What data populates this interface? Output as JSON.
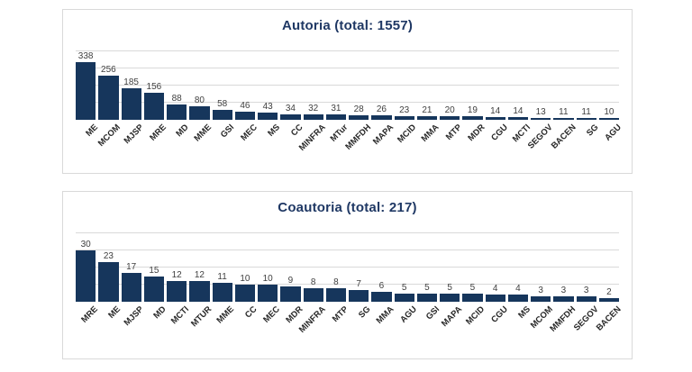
{
  "colors": {
    "bar_fill": "#16365c",
    "title_text": "#1f3864",
    "gridline": "#d9d9d9",
    "panel_border": "#d9d9d9",
    "value_label_text": "#404040",
    "category_label_text": "#262626",
    "background": "#ffffff"
  },
  "chart_data": [
    {
      "type": "bar",
      "title": "Autoria (total: 1557)",
      "total": 1557,
      "categories": [
        "ME",
        "MCOM",
        "MJSP",
        "MRE",
        "MD",
        "MME",
        "GSI",
        "MEC",
        "MS",
        "CC",
        "MINFRA",
        "MTur",
        "MMFDH",
        "MAPA",
        "MCID",
        "MMA",
        "MTP",
        "MDR",
        "CGU",
        "MCTI",
        "SEGOV",
        "BACEN",
        "SG",
        "AGU"
      ],
      "values": [
        338,
        256,
        185,
        156,
        88,
        80,
        58,
        46,
        43,
        34,
        32,
        31,
        28,
        26,
        23,
        21,
        20,
        19,
        14,
        14,
        13,
        11,
        11,
        10
      ],
      "xlabel": "",
      "ylabel": "",
      "ylim": [
        0,
        400
      ],
      "gridline_step": 100,
      "grid": "horizontal",
      "legend_position": "none",
      "data_labels": "above-bars",
      "category_label_rotation_deg": 45
    },
    {
      "type": "bar",
      "title": "Coautoria (total: 217)",
      "total": 217,
      "categories": [
        "MRE",
        "ME",
        "MJSP",
        "MD",
        "MCTI",
        "MTUR",
        "MME",
        "CC",
        "MEC",
        "MDR",
        "MINFRA",
        "MTP",
        "SG",
        "MMA",
        "AGU",
        "GSI",
        "MAPA",
        "MCID",
        "CGU",
        "MS",
        "MCOM",
        "MMFDH",
        "SEGOV",
        "BACEN"
      ],
      "values": [
        30,
        23,
        17,
        15,
        12,
        12,
        11,
        10,
        10,
        9,
        8,
        8,
        7,
        6,
        5,
        5,
        5,
        5,
        4,
        4,
        3,
        3,
        3,
        2
      ],
      "xlabel": "",
      "ylabel": "",
      "ylim": [
        0,
        40
      ],
      "gridline_step": 10,
      "grid": "horizontal",
      "legend_position": "none",
      "data_labels": "above-bars",
      "category_label_rotation_deg": 45
    }
  ]
}
